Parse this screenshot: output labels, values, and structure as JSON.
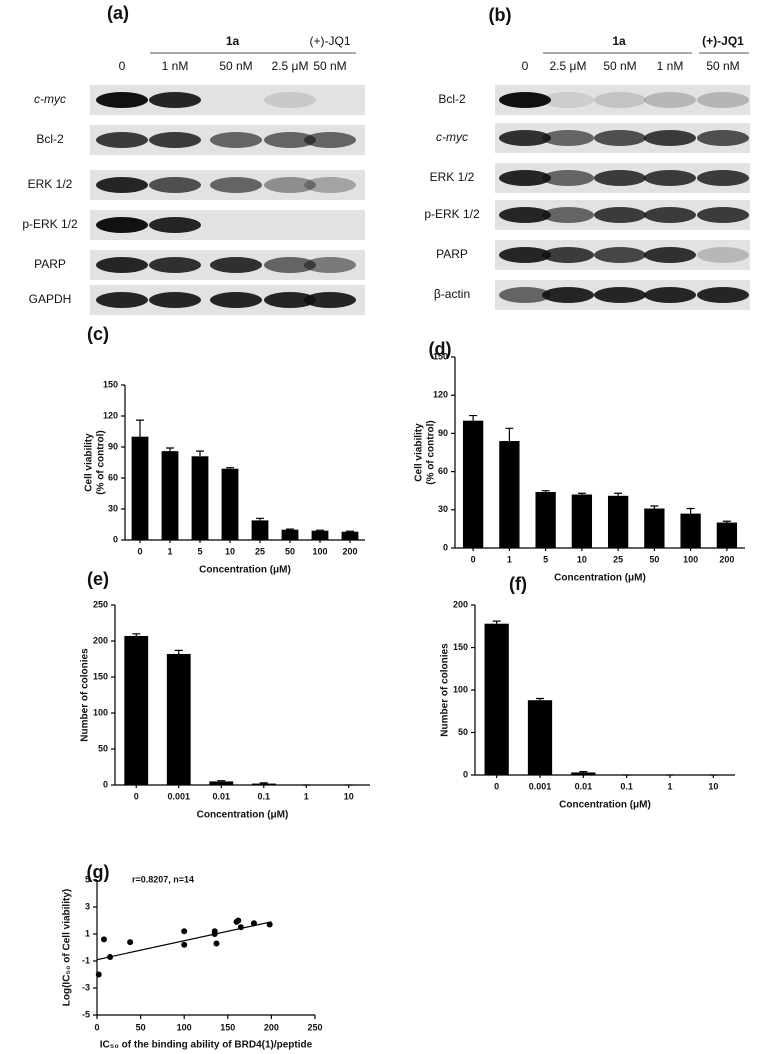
{
  "blots": [
    {
      "panel": "(a)",
      "lanes": [
        "0",
        "1 nM",
        "50 nM",
        "2.5 μM",
        "50 nM"
      ],
      "groups": [
        "1a",
        "(+)-JQ1"
      ],
      "rows": [
        "c-myc",
        "Bcl-2",
        "ERK 1/2",
        "p-ERK 1/2",
        "PARP",
        "GAPDH"
      ]
    },
    {
      "panel": "(b)",
      "lanes": [
        "0",
        "2.5 μM",
        "50 nM",
        "1 nM",
        "50 nM"
      ],
      "groups": [
        "1a",
        "(+)-JQ1"
      ],
      "rows": [
        "Bcl-2",
        "c-myc",
        "ERK 1/2",
        "p-ERK 1/2",
        "PARP",
        "β-actin"
      ]
    }
  ],
  "chart_data": [
    {
      "type": "bar",
      "panel": "(c)",
      "categories": [
        "0",
        "1",
        "5",
        "10",
        "25",
        "50",
        "100",
        "200"
      ],
      "values": [
        100,
        86,
        81,
        69,
        19,
        10,
        9,
        8
      ],
      "errors": [
        16,
        3,
        5,
        1,
        2,
        0.5,
        0.5,
        0.5
      ],
      "ylim": [
        0,
        150
      ],
      "yticks": [
        0,
        30,
        60,
        90,
        120,
        150
      ],
      "color": "#000000",
      "xlabel": "Concentration (μM)",
      "ylabel": [
        "Cell viability",
        "(% of control)"
      ]
    },
    {
      "type": "bar",
      "panel": "(d)",
      "categories": [
        "0",
        "1",
        "5",
        "10",
        "25",
        "50",
        "100",
        "200"
      ],
      "values": [
        100,
        84,
        44,
        42,
        41,
        31,
        27,
        20
      ],
      "errors": [
        4,
        10,
        1,
        1,
        2,
        2,
        4,
        1
      ],
      "ylim": [
        0,
        150
      ],
      "yticks": [
        0,
        30,
        60,
        90,
        120,
        150
      ],
      "color": "#000000",
      "xlabel": "Concentration (μM)",
      "ylabel": [
        "Cell viability",
        "(% of control)"
      ]
    },
    {
      "type": "bar",
      "panel": "(e)",
      "categories": [
        "0",
        "0.001",
        "0.01",
        "0.1",
        "1",
        "10"
      ],
      "values": [
        207,
        182,
        5,
        2,
        0,
        0
      ],
      "errors": [
        3,
        5,
        1,
        1,
        0,
        0
      ],
      "ylim": [
        0,
        250
      ],
      "yticks": [
        0,
        50,
        100,
        150,
        200,
        250
      ],
      "color": "#000000",
      "xlabel": "Concentration (μM)",
      "ylabel": [
        "Number of colonies"
      ]
    },
    {
      "type": "bar",
      "panel": "(f)",
      "categories": [
        "0",
        "0.001",
        "0.01",
        "0.1",
        "1",
        "10"
      ],
      "values": [
        178,
        88,
        3,
        0,
        0,
        0
      ],
      "errors": [
        3,
        2,
        1,
        0,
        0,
        0
      ],
      "ylim": [
        0,
        200
      ],
      "yticks": [
        0,
        50,
        100,
        150,
        200
      ],
      "color": "#000000",
      "xlabel": "Concentration (μM)",
      "ylabel": [
        "Number of colonies"
      ]
    },
    {
      "type": "scatter",
      "panel": "(g)",
      "annotation": "r=0.8207, n=14",
      "x": [
        2,
        8,
        15,
        38,
        100,
        100,
        135,
        137,
        135,
        160,
        162,
        165,
        180,
        198
      ],
      "y": [
        -2,
        0.6,
        -0.7,
        0.4,
        1.2,
        0.2,
        1.0,
        0.3,
        1.2,
        1.9,
        2.0,
        1.5,
        1.8,
        1.7
      ],
      "fit_line": {
        "x": [
          0,
          200
        ],
        "y": [
          -0.9,
          1.9
        ]
      },
      "color": "#000000",
      "xlim": [
        0,
        250
      ],
      "xticks": [
        0,
        50,
        100,
        150,
        200,
        250
      ],
      "ylim": [
        -5,
        5
      ],
      "yticks": [
        -5,
        -3,
        -1,
        1,
        3,
        5
      ],
      "xlabel": "IC₅₀ of the binding ability of BRD4(1)/peptide",
      "ylabel": [
        "Log(IC₅₀ of Cell viability)"
      ]
    }
  ]
}
